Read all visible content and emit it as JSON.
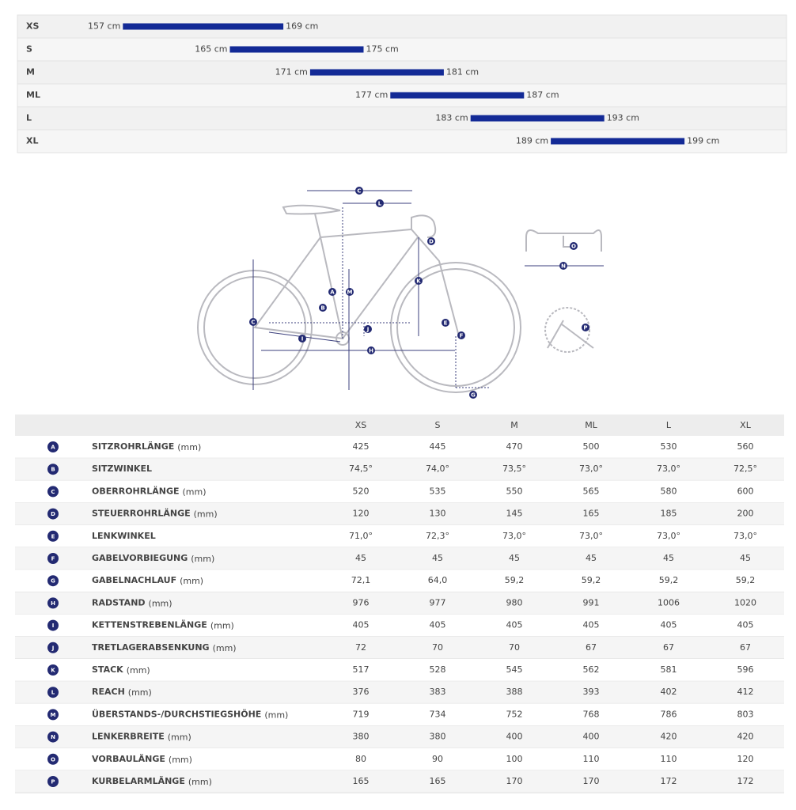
{
  "size_chart": {
    "xlim": [
      150,
      200
    ],
    "color": "#132a96",
    "rows": [
      {
        "size": "XS",
        "min": {
          "value": 157,
          "label": "157 cm"
        },
        "max": {
          "value": 169,
          "label": "169 cm"
        }
      },
      {
        "size": "S",
        "min": {
          "value": 165,
          "label": "165 cm"
        },
        "max": {
          "value": 175,
          "label": "175 cm"
        }
      },
      {
        "size": "M",
        "min": {
          "value": 171,
          "label": "171 cm"
        },
        "max": {
          "value": 181,
          "label": "181 cm"
        }
      },
      {
        "size": "ML",
        "min": {
          "value": 177,
          "label": "177 cm"
        },
        "max": {
          "value": 187,
          "label": "187 cm"
        }
      },
      {
        "size": "L",
        "min": {
          "value": 183,
          "label": "183 cm"
        },
        "max": {
          "value": 193,
          "label": "193 cm"
        }
      },
      {
        "size": "XL",
        "min": {
          "value": 189,
          "label": "189 cm"
        },
        "max": {
          "value": 199,
          "label": "199 cm"
        }
      }
    ]
  },
  "diagram": {
    "labels": [
      "C",
      "L",
      "D",
      "O",
      "N",
      "M",
      "A",
      "K",
      "B",
      "C",
      "E",
      "J",
      "P",
      "F",
      "I",
      "H",
      "G"
    ]
  },
  "table": {
    "columns": [
      "XS",
      "S",
      "M",
      "ML",
      "L",
      "XL"
    ],
    "rows": [
      {
        "key": "A",
        "name": "SITZROHRLÄNGE",
        "unit": "(mm)",
        "values": [
          "425",
          "445",
          "470",
          "500",
          "530",
          "560"
        ]
      },
      {
        "key": "B",
        "name": "SITZWINKEL",
        "values": [
          "74,5°",
          "74,0°",
          "73,5°",
          "73,0°",
          "73,0°",
          "72,5°"
        ]
      },
      {
        "key": "C",
        "name": "OBERROHRLÄNGE",
        "unit": "(mm)",
        "values": [
          "520",
          "535",
          "550",
          "565",
          "580",
          "600"
        ]
      },
      {
        "key": "D",
        "name": "STEUERROHRLÄNGE",
        "unit": "(mm)",
        "values": [
          "120",
          "130",
          "145",
          "165",
          "185",
          "200"
        ]
      },
      {
        "key": "E",
        "name": "LENKWINKEL",
        "values": [
          "71,0°",
          "72,3°",
          "73,0°",
          "73,0°",
          "73,0°",
          "73,0°"
        ]
      },
      {
        "key": "F",
        "name": "GABELVORBIEGUNG",
        "unit": "(mm)",
        "values": [
          "45",
          "45",
          "45",
          "45",
          "45",
          "45"
        ]
      },
      {
        "key": "G",
        "name": "GABELNACHLAUF",
        "unit": "(mm)",
        "values": [
          "72,1",
          "64,0",
          "59,2",
          "59,2",
          "59,2",
          "59,2"
        ]
      },
      {
        "key": "H",
        "name": "RADSTAND",
        "unit": "(mm)",
        "values": [
          "976",
          "977",
          "980",
          "991",
          "1006",
          "1020"
        ]
      },
      {
        "key": "I",
        "name": "KETTENSTREBENLÄNGE",
        "unit": "(mm)",
        "values": [
          "405",
          "405",
          "405",
          "405",
          "405",
          "405"
        ]
      },
      {
        "key": "J",
        "name": "TRETLAGERABSENKUNG",
        "unit": "(mm)",
        "values": [
          "72",
          "70",
          "70",
          "67",
          "67",
          "67"
        ]
      },
      {
        "key": "K",
        "name": "STACK",
        "unit": "(mm)",
        "values": [
          "517",
          "528",
          "545",
          "562",
          "581",
          "596"
        ]
      },
      {
        "key": "L",
        "name": "REACH",
        "unit": "(mm)",
        "values": [
          "376",
          "383",
          "388",
          "393",
          "402",
          "412"
        ]
      },
      {
        "key": "M",
        "name": "ÜBERSTANDS-/DURCHSTIEGSHÖHE",
        "unit": "(mm)",
        "values": [
          "719",
          "734",
          "752",
          "768",
          "786",
          "803"
        ]
      },
      {
        "key": "N",
        "name": "LENKERBREITE",
        "unit": "(mm)",
        "values": [
          "380",
          "380",
          "400",
          "400",
          "420",
          "420"
        ]
      },
      {
        "key": "O",
        "name": "VORBAULÄNGE",
        "unit": "(mm)",
        "values": [
          "80",
          "90",
          "100",
          "110",
          "110",
          "120"
        ]
      },
      {
        "key": "P",
        "name": "KURBELARMLÄNGE",
        "unit": "(mm)",
        "values": [
          "165",
          "165",
          "170",
          "170",
          "172",
          "172"
        ]
      }
    ]
  }
}
